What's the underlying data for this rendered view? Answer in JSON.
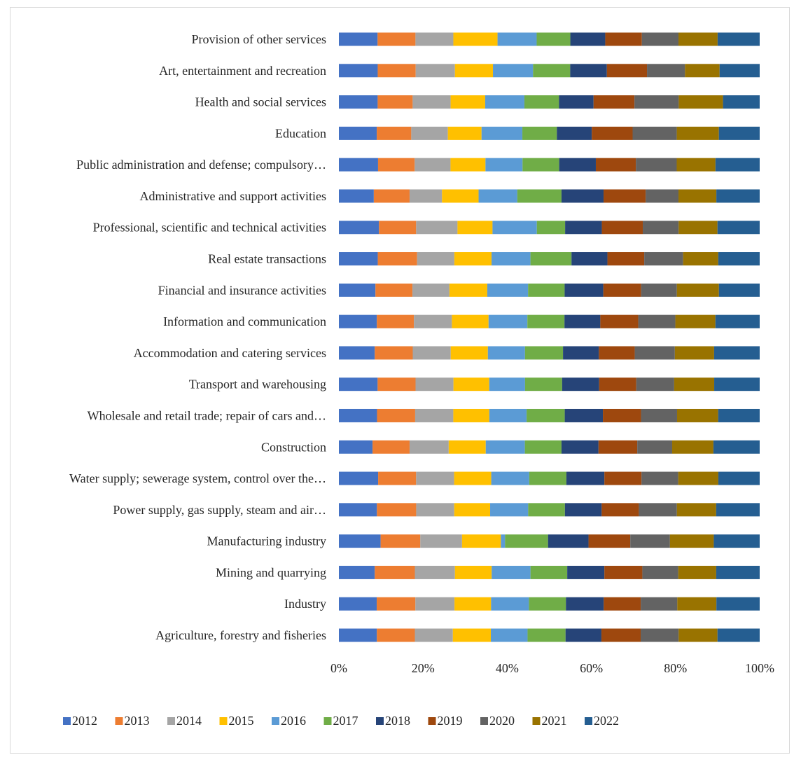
{
  "chart_data": {
    "type": "bar",
    "orientation": "horizontal",
    "stacked": "percent",
    "title": "",
    "xlabel": "",
    "ylabel": "",
    "xlim": [
      0,
      100
    ],
    "x_ticks": [
      "0%",
      "20%",
      "40%",
      "60%",
      "80%",
      "100%"
    ],
    "grid": false,
    "legend_position": "bottom",
    "categories": [
      "Provision of other services",
      "Art, entertainment and recreation",
      "Health and social services",
      "Education",
      "Public administration and defense; compulsory…",
      "Administrative and support activities",
      "Professional, scientific and technical activities",
      "Real estate transactions",
      "Financial and insurance activities",
      "Information and communication",
      "Accommodation and catering services",
      "Transport and warehousing",
      "Wholesale and retail trade; repair of cars and…",
      "Construction",
      "Water supply; sewerage system, control over the…",
      "Power supply, gas supply, steam and air…",
      "Manufacturing industry",
      "Mining and quarrying",
      "Industry",
      "Agriculture, forestry and fisheries"
    ],
    "series": [
      {
        "name": "2012",
        "color": "#4472C4",
        "values": [
          9.2,
          9.2,
          9.2,
          9.0,
          9.3,
          8.3,
          9.5,
          9.2,
          8.7,
          9.0,
          8.5,
          9.2,
          9.0,
          8.0,
          9.3,
          9.0,
          10.0,
          8.5,
          9.0,
          9.0
        ]
      },
      {
        "name": "2013",
        "color": "#ED7D31",
        "values": [
          9.0,
          9.0,
          8.3,
          8.2,
          8.7,
          8.5,
          8.8,
          9.3,
          8.8,
          8.8,
          9.0,
          9.0,
          9.0,
          8.8,
          9.0,
          9.3,
          9.5,
          9.5,
          9.2,
          9.0
        ]
      },
      {
        "name": "2014",
        "color": "#A5A5A5",
        "values": [
          9.0,
          9.3,
          9.0,
          8.7,
          8.5,
          7.7,
          9.8,
          8.8,
          8.8,
          9.0,
          9.0,
          9.0,
          9.0,
          9.3,
          9.0,
          9.0,
          10.0,
          9.5,
          9.3,
          9.0
        ]
      },
      {
        "name": "2015",
        "color": "#FFC000",
        "values": [
          10.5,
          9.0,
          8.2,
          8.0,
          8.3,
          8.7,
          8.3,
          8.8,
          9.0,
          8.7,
          8.8,
          8.5,
          8.5,
          8.8,
          8.8,
          8.5,
          9.3,
          8.7,
          8.7,
          9.0
        ]
      },
      {
        "name": "2016",
        "color": "#5B9BD5",
        "values": [
          9.3,
          9.5,
          9.3,
          9.7,
          8.8,
          9.2,
          10.5,
          9.2,
          9.7,
          9.2,
          8.8,
          8.5,
          8.8,
          9.3,
          9.0,
          9.0,
          1.0,
          9.2,
          9.0,
          8.7
        ]
      },
      {
        "name": "2017",
        "color": "#70AD47",
        "values": [
          8.0,
          8.8,
          8.2,
          8.2,
          8.7,
          10.5,
          6.7,
          9.7,
          8.7,
          8.8,
          9.0,
          8.8,
          9.0,
          8.7,
          8.8,
          8.7,
          10.3,
          8.7,
          8.8,
          9.0
        ]
      },
      {
        "name": "2018",
        "color": "#264478",
        "values": [
          8.3,
          8.7,
          8.2,
          8.3,
          8.7,
          10.0,
          8.7,
          8.5,
          9.2,
          8.5,
          8.5,
          8.8,
          9.0,
          8.8,
          9.0,
          8.7,
          9.7,
          8.8,
          9.0,
          8.5
        ]
      },
      {
        "name": "2019",
        "color": "#9E480E",
        "values": [
          8.7,
          9.5,
          9.7,
          9.7,
          9.5,
          10.0,
          9.7,
          8.7,
          9.0,
          9.0,
          8.5,
          8.8,
          9.0,
          9.2,
          8.8,
          8.8,
          10.0,
          9.0,
          8.8,
          9.3
        ]
      },
      {
        "name": "2020",
        "color": "#636363",
        "values": [
          8.7,
          9.0,
          10.5,
          10.5,
          9.7,
          7.8,
          8.5,
          9.2,
          8.5,
          8.8,
          9.5,
          9.0,
          8.5,
          8.3,
          8.7,
          9.0,
          9.5,
          8.5,
          8.7,
          9.0
        ]
      },
      {
        "name": "2021",
        "color": "#997300",
        "values": [
          9.3,
          8.2,
          10.5,
          10.0,
          9.2,
          9.0,
          9.2,
          8.3,
          10.0,
          9.5,
          9.3,
          9.5,
          9.7,
          9.8,
          9.5,
          9.3,
          10.5,
          9.0,
          9.3,
          9.2
        ]
      },
      {
        "name": "2022",
        "color": "#255E91",
        "values": [
          10.0,
          9.5,
          8.7,
          9.7,
          10.5,
          10.3,
          10.0,
          9.8,
          9.7,
          10.5,
          10.8,
          10.8,
          9.8,
          11.0,
          9.8,
          10.3,
          11.0,
          10.3,
          10.3,
          10.0
        ]
      }
    ]
  }
}
